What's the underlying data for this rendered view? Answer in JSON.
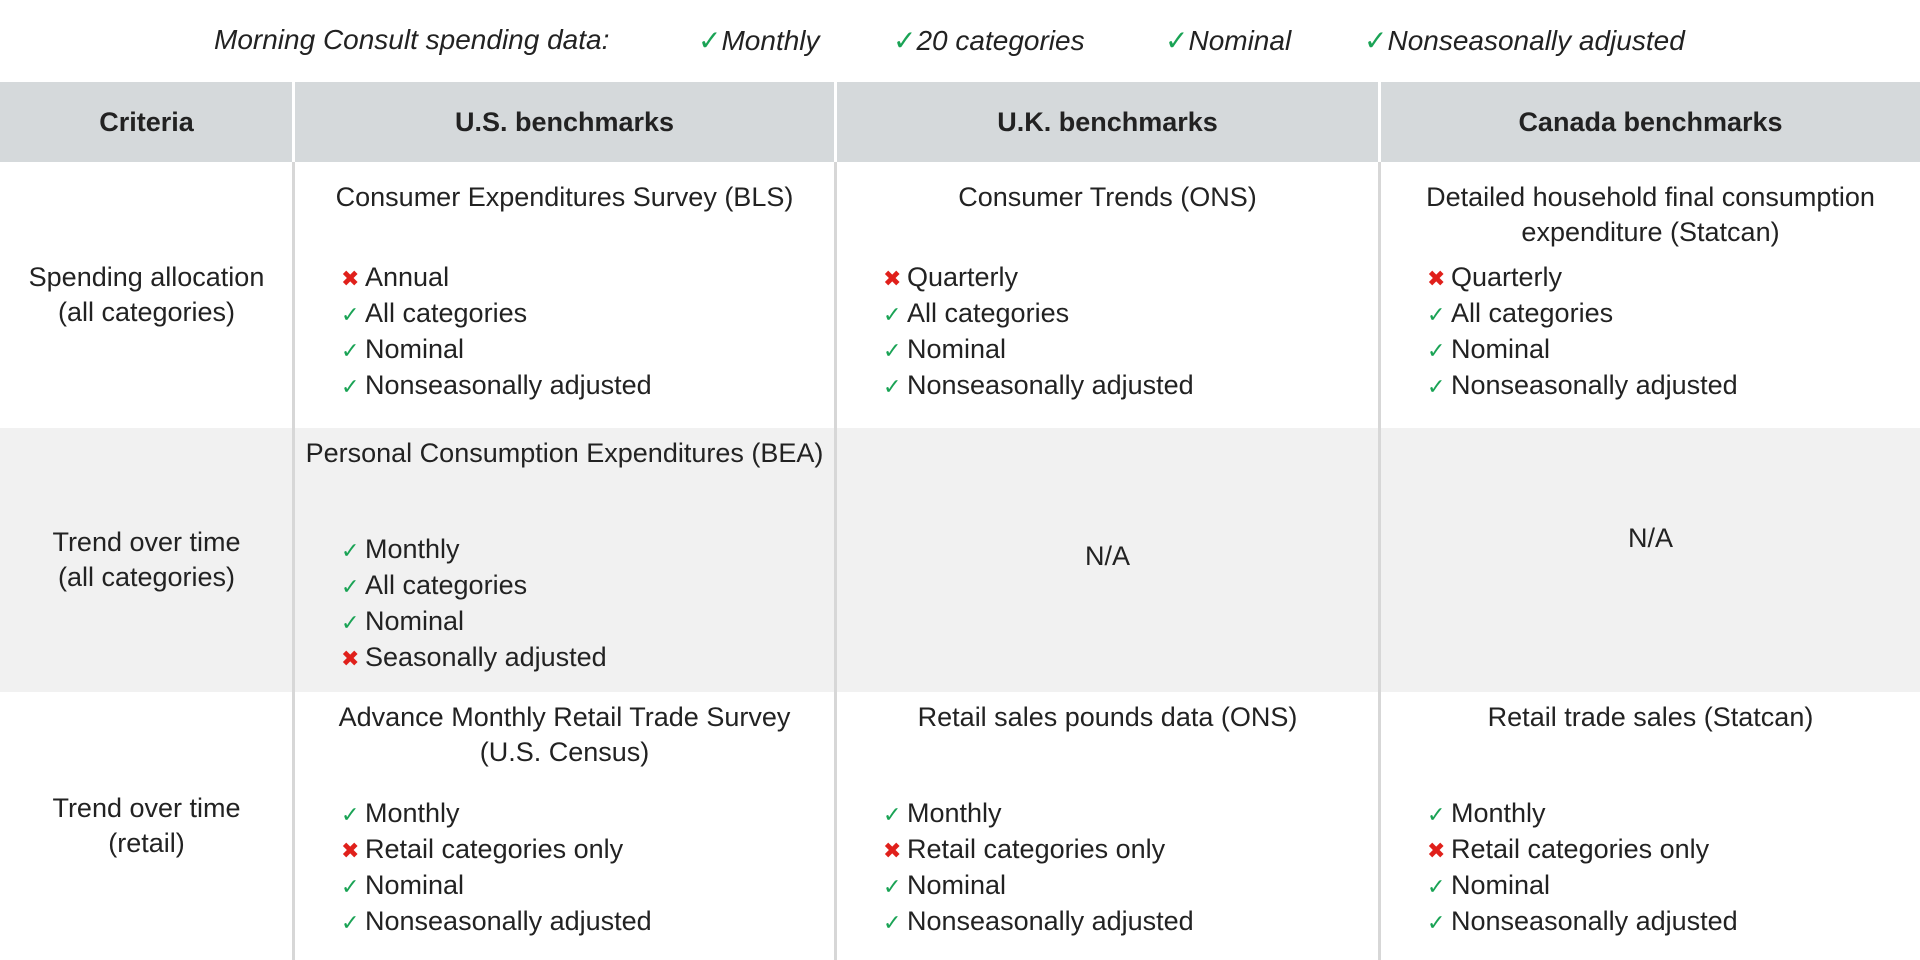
{
  "header_line": {
    "label": "Morning Consult spending data:",
    "items": [
      {
        "mark": "✓",
        "text": "Monthly"
      },
      {
        "mark": "✓",
        "text": "20 categories"
      },
      {
        "mark": "✓",
        "text": "Nominal"
      },
      {
        "mark": "✓",
        "text": "Nonseasonally adjusted"
      }
    ]
  },
  "colors": {
    "header_bg": "#d5d9db",
    "shaded_row": "#f1f1f1",
    "check": "#1aa355",
    "cross": "#e0201b"
  },
  "columns": [
    "Criteria",
    "U.S. benchmarks",
    "U.K. benchmarks",
    "Canada benchmarks"
  ],
  "rows": [
    {
      "criteria": [
        "Spending allocation",
        "(all categories)"
      ],
      "cells": [
        {
          "title": "Consumer Expenditures Survey (BLS)",
          "items": [
            {
              "mark": "✖",
              "text": "Annual"
            },
            {
              "mark": "✓",
              "text": "All categories"
            },
            {
              "mark": "✓",
              "text": "Nominal"
            },
            {
              "mark": "✓",
              "text": "Nonseasonally adjusted"
            }
          ]
        },
        {
          "title": "Consumer Trends (ONS)",
          "items": [
            {
              "mark": "✖",
              "text": "Quarterly"
            },
            {
              "mark": "✓",
              "text": "All categories"
            },
            {
              "mark": "✓",
              "text": "Nominal"
            },
            {
              "mark": "✓",
              "text": "Nonseasonally adjusted"
            }
          ]
        },
        {
          "title": "Detailed household final consumption expenditure (Statcan)",
          "items": [
            {
              "mark": "✖",
              "text": "Quarterly"
            },
            {
              "mark": "✓",
              "text": "All categories"
            },
            {
              "mark": "✓",
              "text": "Nominal"
            },
            {
              "mark": "✓",
              "text": "Nonseasonally adjusted"
            }
          ]
        }
      ]
    },
    {
      "criteria": [
        "Trend over time",
        "(all categories)"
      ],
      "cells": [
        {
          "title": "Personal Consumption Expenditures (BEA)",
          "items": [
            {
              "mark": "✓",
              "text": "Monthly"
            },
            {
              "mark": "✓",
              "text": "All categories"
            },
            {
              "mark": "✓",
              "text": "Nominal"
            },
            {
              "mark": "✖",
              "text": "Seasonally adjusted"
            }
          ]
        },
        {
          "na": "N/A"
        },
        {
          "na": "N/A"
        }
      ]
    },
    {
      "criteria": [
        "Trend over time",
        "(retail)"
      ],
      "cells": [
        {
          "title": "Advance Monthly Retail Trade Survey (U.S. Census)",
          "items": [
            {
              "mark": "✓",
              "text": "Monthly"
            },
            {
              "mark": "✖",
              "text": "Retail categories only"
            },
            {
              "mark": "✓",
              "text": "Nominal"
            },
            {
              "mark": "✓",
              "text": "Nonseasonally adjusted"
            }
          ]
        },
        {
          "title": "Retail sales pounds data (ONS)",
          "items": [
            {
              "mark": "✓",
              "text": "Monthly"
            },
            {
              "mark": "✖",
              "text": "Retail categories only"
            },
            {
              "mark": "✓",
              "text": "Nominal"
            },
            {
              "mark": "✓",
              "text": "Nonseasonally adjusted"
            }
          ]
        },
        {
          "title": "Retail trade sales (Statcan)",
          "items": [
            {
              "mark": "✓",
              "text": "Monthly"
            },
            {
              "mark": "✖",
              "text": "Retail categories only"
            },
            {
              "mark": "✓",
              "text": "Nominal"
            },
            {
              "mark": "✓",
              "text": "Nonseasonally adjusted"
            }
          ]
        }
      ]
    }
  ]
}
